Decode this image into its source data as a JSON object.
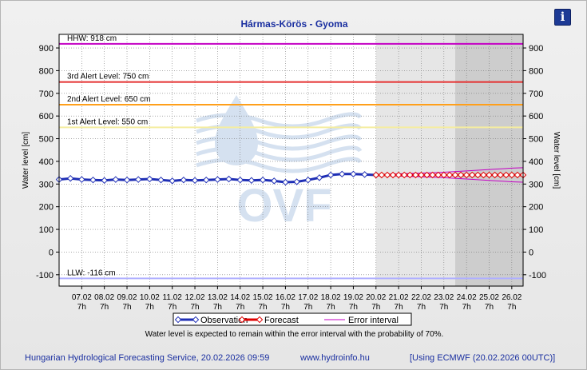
{
  "title": "Hármas-Körös - Gyoma",
  "info_label": "i",
  "note": "Water level is expected to remain within the error interval with the probability of 70%.",
  "footer": {
    "left": "Hungarian Hydrological Forecasting Service, 20.02.2026 09:59",
    "center": "www.hydroinfo.hu",
    "right": "[Using ECMWF (20.02.2026  00UTC)]"
  },
  "watermark": "OVF",
  "colors": {
    "observation": "#1f2fb5",
    "forecast": "#e00000",
    "error_interval": "#c400c4",
    "hhw": "#c400c4",
    "alert3": "#e53030",
    "alert2": "#ff9f1a",
    "alert1": "#f5eda0",
    "llw": "#b0b0ff"
  },
  "chart_data": {
    "type": "line",
    "ylabel": "Water level [cm]",
    "ylim": [
      -150,
      960
    ],
    "yticks": [
      -100,
      0,
      100,
      200,
      300,
      400,
      500,
      600,
      700,
      800,
      900
    ],
    "grid": true,
    "x_range": [
      "06.02 7h",
      "26.02 7h"
    ],
    "x_ticks": [
      "07.02",
      "08.02",
      "09.02",
      "10.02",
      "11.02",
      "12.02",
      "13.02",
      "14.02",
      "15.02",
      "16.02",
      "17.02",
      "18.02",
      "19.02",
      "20.02",
      "21.02",
      "22.02",
      "23.02",
      "24.02",
      "25.02",
      "26.02"
    ],
    "x_tick_sub": "7h",
    "x_tick_positions_days": [
      1,
      2,
      3,
      4,
      5,
      6,
      7,
      8,
      9,
      10,
      11,
      12,
      13,
      14,
      15,
      16,
      17,
      18,
      19,
      20
    ],
    "shaded_regions": [
      {
        "from_day": 14,
        "to_day": 17.5,
        "label": "forecast period"
      },
      {
        "from_day": 17.5,
        "to_day": 20.5,
        "label": "extended forecast"
      }
    ],
    "levels": [
      {
        "label": "HHW: 918 cm",
        "value": 918,
        "color_key": "hhw"
      },
      {
        "label": "3rd Alert Level: 750 cm",
        "value": 750,
        "color_key": "alert3"
      },
      {
        "label": "2nd Alert Level: 650 cm",
        "value": 650,
        "color_key": "alert2"
      },
      {
        "label": "1st Alert Level: 550 cm",
        "value": 550,
        "color_key": "alert1"
      },
      {
        "label": "LLW: -116 cm",
        "value": -116,
        "color_key": "llw"
      }
    ],
    "legend": {
      "position": "bottom",
      "entries": [
        "Observation",
        "Forecast",
        "Error interval"
      ]
    },
    "series": [
      {
        "name": "Observation",
        "x_days": [
          0,
          0.5,
          1,
          1.5,
          2,
          2.5,
          3,
          3.5,
          4,
          4.5,
          5,
          5.5,
          6,
          6.5,
          7,
          7.5,
          8,
          8.5,
          9,
          9.5,
          10,
          10.5,
          11,
          11.5,
          12,
          12.5,
          13,
          13.5,
          14
        ],
        "values": [
          320,
          325,
          320,
          318,
          316,
          320,
          318,
          320,
          322,
          318,
          314,
          318,
          316,
          318,
          320,
          322,
          318,
          316,
          318,
          314,
          308,
          310,
          318,
          328,
          340,
          344,
          344,
          342,
          340
        ]
      },
      {
        "name": "Forecast",
        "x_days": [
          14,
          14.25,
          14.5,
          14.75,
          15,
          15.25,
          15.5,
          15.75,
          16,
          16.25,
          16.5,
          16.75,
          17,
          17.25,
          17.5,
          17.75,
          18,
          18.25,
          18.5,
          18.75,
          19,
          19.25,
          19.5,
          19.75,
          20,
          20.25,
          20.5
        ],
        "values": [
          340,
          340,
          340,
          340,
          340,
          340,
          340,
          340,
          340,
          340,
          340,
          340,
          340,
          340,
          340,
          340,
          340,
          340,
          340,
          340,
          340,
          340,
          340,
          340,
          340,
          340,
          340
        ]
      },
      {
        "name": "Error interval",
        "x_days": [
          14,
          15,
          16,
          17,
          18,
          19,
          20,
          20.5
        ],
        "upper": [
          342,
          345,
          348,
          352,
          358,
          364,
          370,
          372
        ],
        "lower": [
          338,
          335,
          332,
          328,
          322,
          316,
          310,
          308
        ]
      }
    ]
  }
}
